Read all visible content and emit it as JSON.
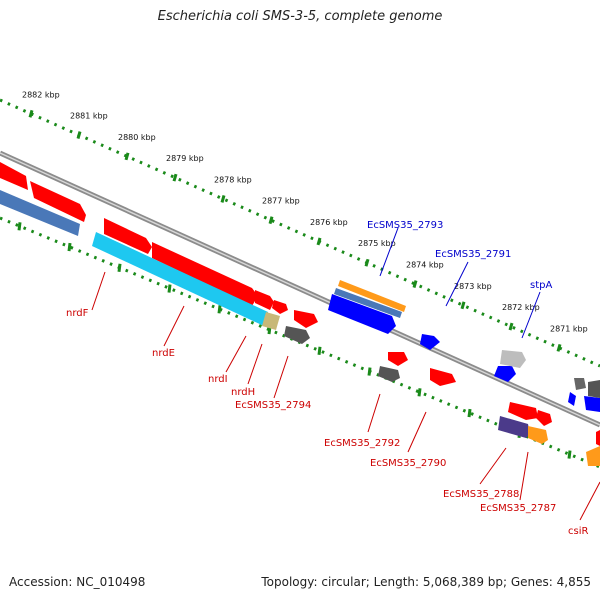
{
  "title": "Escherichia coli SMS-3-5, complete genome",
  "footer": {
    "accession": "Accession: NC_010498",
    "summary": "Topology: circular; Length: 5,068,389 bp; Genes: 4,855"
  },
  "colors": {
    "backbone": "#8a8a8a",
    "tick": "#1a8a1a",
    "forward_gene": "#ff0000",
    "reverse_gene": "#0000ff",
    "cds_cyan": "#1ec8f0",
    "steel": "#4a78b8",
    "orange": "#ff9a1a",
    "gray_feature": "#666666",
    "purple": "#4b3a8a",
    "label_red": "#cc0000",
    "label_blue": "#0000cc"
  },
  "scale_labels": [
    "2882 kbp",
    "2881 kbp",
    "2880 kbp",
    "2879 kbp",
    "2878 kbp",
    "2877 kbp",
    "2876 kbp",
    "2875 kbp",
    "2874 kbp",
    "2873 kbp",
    "2872 kbp",
    "2871 kbp"
  ],
  "gene_labels": {
    "nrdF": "nrdF",
    "nrdE": "nrdE",
    "nrdI": "nrdI",
    "nrdH": "nrdH",
    "EcSMS35_2794": "EcSMS35_2794",
    "EcSMS35_2792": "EcSMS35_2792",
    "EcSMS35_2790": "EcSMS35_2790",
    "EcSMS35_2788": "EcSMS35_2788",
    "EcSMS35_2787": "EcSMS35_2787",
    "csiR": "csiR",
    "EcSMS35_2793": "EcSMS35_2793",
    "EcSMS35_2791": "EcSMS35_2791",
    "stpA": "stpA"
  }
}
